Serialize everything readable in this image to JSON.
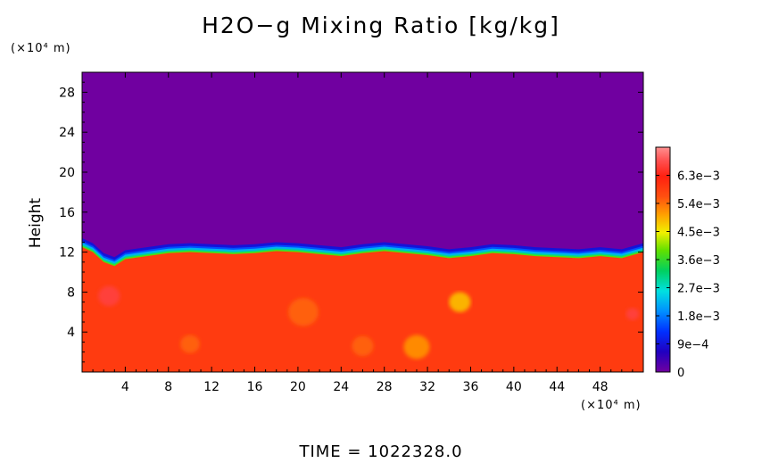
{
  "chart_data": {
    "type": "heatmap",
    "title": "H2O−g Mixing Ratio [kg/kg]",
    "xlabel": "",
    "ylabel": "Height",
    "x_unit": "(×10⁴ m)",
    "y_unit": "(×10⁴ m)",
    "xlim": [
      0,
      52
    ],
    "ylim": [
      0,
      30
    ],
    "x_ticks": [
      "4",
      "8",
      "12",
      "16",
      "20",
      "24",
      "28",
      "32",
      "36",
      "40",
      "44",
      "48"
    ],
    "y_ticks": [
      "4",
      "8",
      "12",
      "16",
      "20",
      "24",
      "28"
    ],
    "colorbar": {
      "tick_labels": [
        "0",
        "9e−4",
        "1.8e−3",
        "2.7e−3",
        "3.6e−3",
        "4.5e−3",
        "5.4e−3",
        "6.3e−3"
      ],
      "tick_values": [
        0,
        0.0009,
        0.0018,
        0.0027,
        0.0036,
        0.0045,
        0.0054,
        0.0063
      ],
      "range": [
        0,
        0.0072
      ]
    },
    "field_summary": {
      "lower_layer_value": 0.0059,
      "upper_layer_value": 0,
      "interface_height": 11.5,
      "interface_profile": {
        "x": [
          0,
          1,
          2,
          3,
          4,
          6,
          8,
          10,
          12,
          14,
          16,
          18,
          20,
          22,
          24,
          26,
          28,
          30,
          32,
          34,
          36,
          38,
          40,
          42,
          44,
          46,
          48,
          50,
          52
        ],
        "height": [
          12.5,
          12.0,
          11.0,
          10.6,
          11.3,
          11.6,
          11.9,
          12.0,
          11.9,
          11.8,
          11.9,
          12.1,
          12.0,
          11.8,
          11.6,
          11.9,
          12.1,
          11.9,
          11.7,
          11.4,
          11.6,
          11.9,
          11.8,
          11.6,
          11.5,
          11.4,
          11.6,
          11.4,
          12.0
        ]
      },
      "blobs": [
        {
          "x": 2.5,
          "y": 7.6,
          "r": 1.0,
          "v": 0.0066
        },
        {
          "x": 35.0,
          "y": 7.0,
          "r": 1.0,
          "v": 0.0049
        },
        {
          "x": 31.0,
          "y": 2.5,
          "r": 1.2,
          "v": 0.0052
        },
        {
          "x": 26.0,
          "y": 2.6,
          "r": 1.0,
          "v": 0.0055
        },
        {
          "x": 51.0,
          "y": 5.8,
          "r": 0.6,
          "v": 0.0066
        },
        {
          "x": 10.0,
          "y": 2.8,
          "r": 0.9,
          "v": 0.0055
        },
        {
          "x": 20.5,
          "y": 6.0,
          "r": 1.4,
          "v": 0.0055
        }
      ]
    }
  },
  "footer": {
    "time_label": "TIME  =  1022328.0"
  }
}
